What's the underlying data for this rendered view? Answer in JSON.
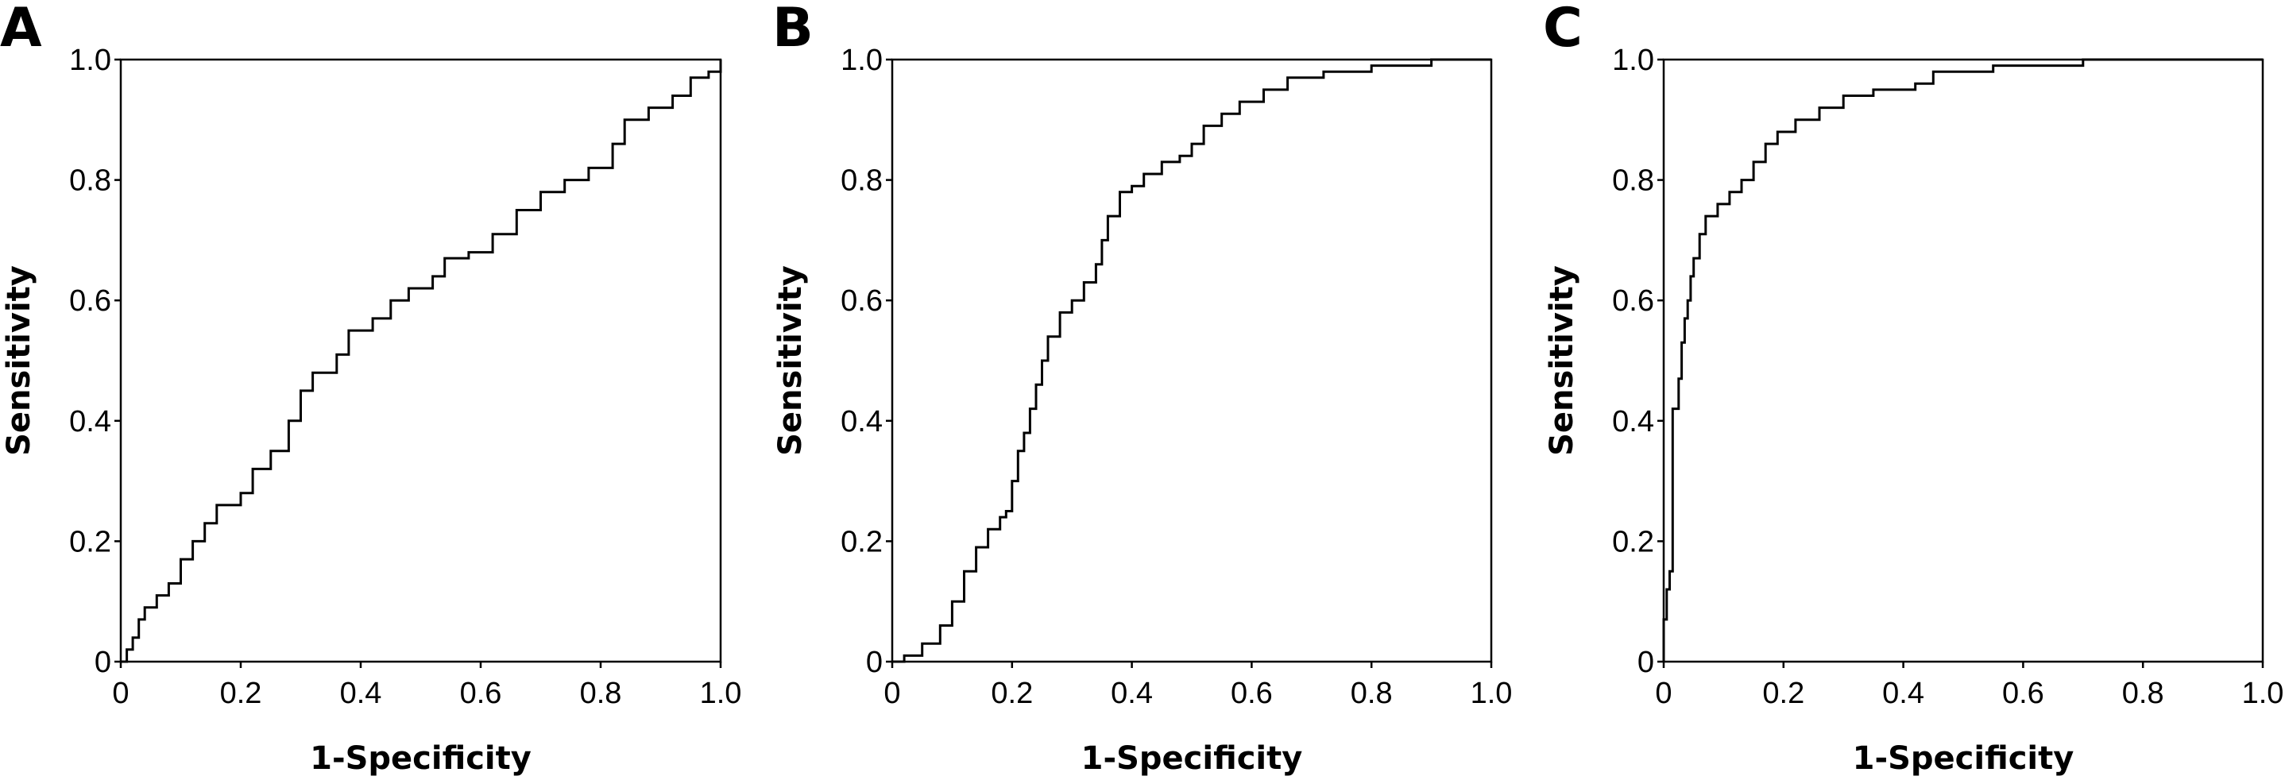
{
  "chart_data": [
    {
      "type": "line",
      "panel_label": "A",
      "xlabel": "1-Specificity",
      "ylabel": "Sensitivity",
      "xlim": [
        0,
        1
      ],
      "ylim": [
        0,
        1
      ],
      "x_ticks": [
        "0",
        "0.2",
        "0.4",
        "0.6",
        "0.8",
        "1.0"
      ],
      "y_ticks": [
        "0",
        "0.2",
        "0.4",
        "0.6",
        "0.8",
        "1.0"
      ],
      "grid": false,
      "step": true,
      "color": "#000000",
      "points": [
        [
          0,
          0
        ],
        [
          0.01,
          0.02
        ],
        [
          0.02,
          0.04
        ],
        [
          0.03,
          0.07
        ],
        [
          0.04,
          0.09
        ],
        [
          0.06,
          0.11
        ],
        [
          0.08,
          0.13
        ],
        [
          0.1,
          0.17
        ],
        [
          0.12,
          0.2
        ],
        [
          0.14,
          0.23
        ],
        [
          0.16,
          0.26
        ],
        [
          0.2,
          0.28
        ],
        [
          0.22,
          0.32
        ],
        [
          0.25,
          0.35
        ],
        [
          0.28,
          0.4
        ],
        [
          0.3,
          0.45
        ],
        [
          0.32,
          0.48
        ],
        [
          0.36,
          0.51
        ],
        [
          0.38,
          0.55
        ],
        [
          0.42,
          0.57
        ],
        [
          0.45,
          0.6
        ],
        [
          0.48,
          0.62
        ],
        [
          0.52,
          0.64
        ],
        [
          0.54,
          0.67
        ],
        [
          0.58,
          0.68
        ],
        [
          0.62,
          0.71
        ],
        [
          0.66,
          0.75
        ],
        [
          0.7,
          0.78
        ],
        [
          0.74,
          0.8
        ],
        [
          0.78,
          0.82
        ],
        [
          0.82,
          0.86
        ],
        [
          0.84,
          0.9
        ],
        [
          0.88,
          0.92
        ],
        [
          0.92,
          0.94
        ],
        [
          0.95,
          0.97
        ],
        [
          0.98,
          0.98
        ],
        [
          1,
          1
        ]
      ]
    },
    {
      "type": "line",
      "panel_label": "B",
      "xlabel": "1-Specificity",
      "ylabel": "Sensitivity",
      "xlim": [
        0,
        1
      ],
      "ylim": [
        0,
        1
      ],
      "x_ticks": [
        "0",
        "0.2",
        "0.4",
        "0.6",
        "0.8",
        "1.0"
      ],
      "y_ticks": [
        "0",
        "0.2",
        "0.4",
        "0.6",
        "0.8",
        "1.0"
      ],
      "grid": false,
      "step": true,
      "color": "#000000",
      "points": [
        [
          0,
          0
        ],
        [
          0.02,
          0.01
        ],
        [
          0.05,
          0.03
        ],
        [
          0.08,
          0.06
        ],
        [
          0.1,
          0.1
        ],
        [
          0.12,
          0.15
        ],
        [
          0.14,
          0.19
        ],
        [
          0.16,
          0.22
        ],
        [
          0.18,
          0.24
        ],
        [
          0.19,
          0.25
        ],
        [
          0.2,
          0.3
        ],
        [
          0.21,
          0.35
        ],
        [
          0.22,
          0.38
        ],
        [
          0.23,
          0.42
        ],
        [
          0.24,
          0.46
        ],
        [
          0.25,
          0.5
        ],
        [
          0.26,
          0.54
        ],
        [
          0.28,
          0.58
        ],
        [
          0.3,
          0.6
        ],
        [
          0.32,
          0.63
        ],
        [
          0.34,
          0.66
        ],
        [
          0.35,
          0.7
        ],
        [
          0.36,
          0.74
        ],
        [
          0.38,
          0.78
        ],
        [
          0.4,
          0.79
        ],
        [
          0.42,
          0.81
        ],
        [
          0.45,
          0.83
        ],
        [
          0.48,
          0.84
        ],
        [
          0.5,
          0.86
        ],
        [
          0.52,
          0.89
        ],
        [
          0.55,
          0.91
        ],
        [
          0.58,
          0.93
        ],
        [
          0.62,
          0.95
        ],
        [
          0.66,
          0.97
        ],
        [
          0.72,
          0.98
        ],
        [
          0.8,
          0.99
        ],
        [
          0.9,
          1
        ],
        [
          1,
          1
        ]
      ]
    },
    {
      "type": "line",
      "panel_label": "C",
      "xlabel": "1-Specificity",
      "ylabel": "Sensitivity",
      "xlim": [
        0,
        1
      ],
      "ylim": [
        0,
        1
      ],
      "x_ticks": [
        "0",
        "0.2",
        "0.4",
        "0.6",
        "0.8",
        "1.0"
      ],
      "y_ticks": [
        "0",
        "0.2",
        "0.4",
        "0.6",
        "0.8",
        "1.0"
      ],
      "grid": false,
      "step": true,
      "color": "#000000",
      "points": [
        [
          0,
          0
        ],
        [
          0,
          0.07
        ],
        [
          0.005,
          0.12
        ],
        [
          0.01,
          0.15
        ],
        [
          0.015,
          0.42
        ],
        [
          0.025,
          0.47
        ],
        [
          0.03,
          0.53
        ],
        [
          0.035,
          0.57
        ],
        [
          0.04,
          0.6
        ],
        [
          0.045,
          0.64
        ],
        [
          0.05,
          0.67
        ],
        [
          0.06,
          0.71
        ],
        [
          0.07,
          0.74
        ],
        [
          0.09,
          0.76
        ],
        [
          0.11,
          0.78
        ],
        [
          0.13,
          0.8
        ],
        [
          0.15,
          0.83
        ],
        [
          0.17,
          0.86
        ],
        [
          0.19,
          0.88
        ],
        [
          0.22,
          0.9
        ],
        [
          0.26,
          0.92
        ],
        [
          0.3,
          0.94
        ],
        [
          0.35,
          0.95
        ],
        [
          0.42,
          0.96
        ],
        [
          0.45,
          0.98
        ],
        [
          0.55,
          0.99
        ],
        [
          0.7,
          1
        ],
        [
          1,
          1
        ]
      ]
    }
  ]
}
